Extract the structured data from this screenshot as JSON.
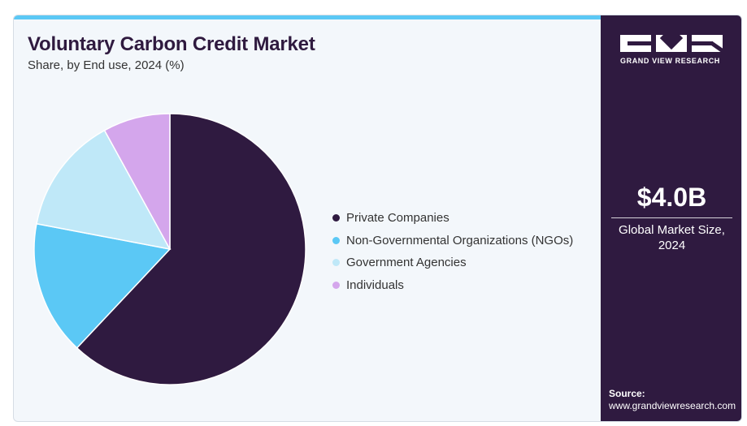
{
  "header": {
    "title": "Voluntary Carbon Credit Market",
    "subtitle": "Share, by End use, 2024 (%)"
  },
  "chart_data": {
    "type": "pie",
    "categories": [
      "Private Companies",
      "Non-Governmental Organizations (NGOs)",
      "Government Agencies",
      "Individuals"
    ],
    "values": [
      62,
      16,
      14,
      8
    ],
    "colors": [
      "#2f1a40",
      "#5bc8f5",
      "#bfe8f8",
      "#d4a6ec"
    ],
    "start_angle_deg": 0,
    "direction": "clockwise",
    "legend_position": "right"
  },
  "side_panel": {
    "logo_text": "GRAND VIEW RESEARCH",
    "market_value": "$4.0B",
    "market_label_line1": "Global Market Size,",
    "market_label_line2": "2024",
    "source_title": "Source:",
    "source_url": "www.grandviewresearch.com"
  },
  "colors": {
    "accent": "#5bc8f5",
    "panel": "#2f1a40",
    "card_bg": "#f3f7fb"
  }
}
